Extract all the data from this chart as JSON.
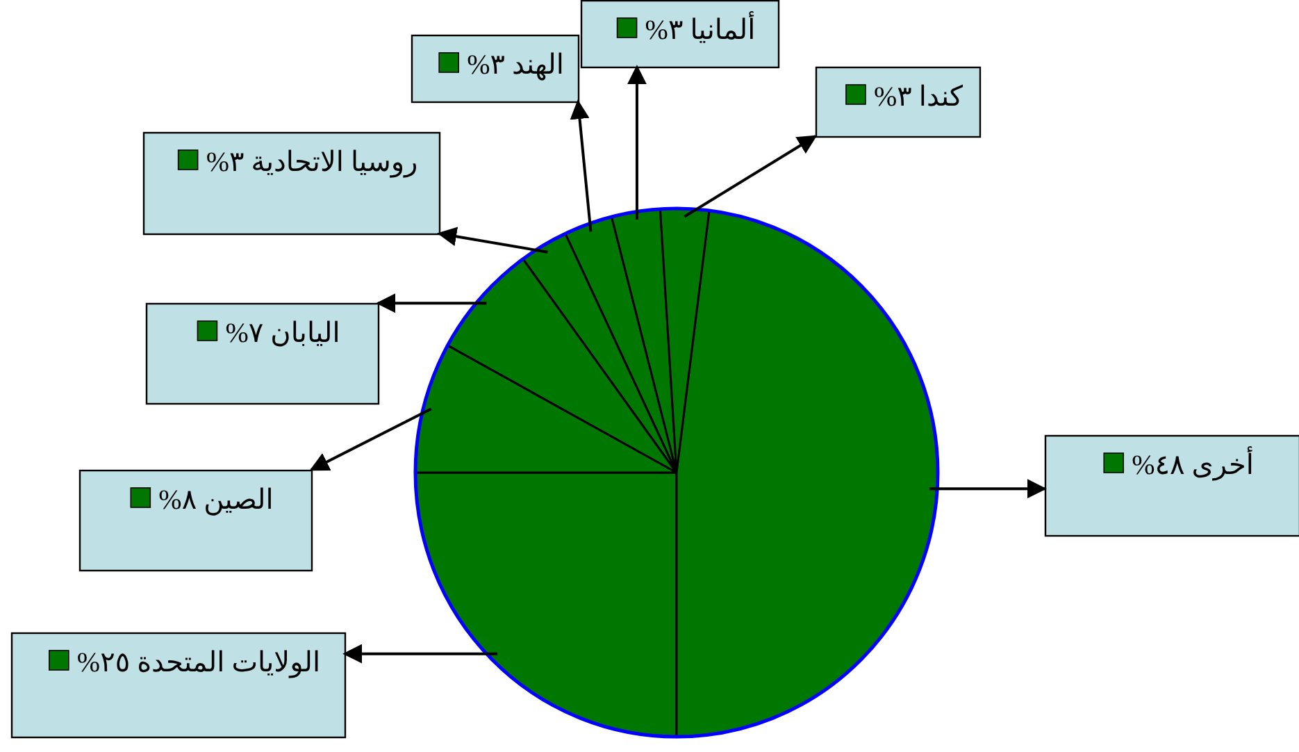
{
  "chart_data": {
    "type": "pie",
    "categories": [
      "الولايات المتحدة",
      "الصين",
      "اليابان",
      "روسيا الاتحادية",
      "الهند",
      "ألمانيا",
      "كندا",
      "أخرى"
    ],
    "values": [
      25,
      8,
      7,
      3,
      3,
      3,
      3,
      48
    ],
    "value_labels": [
      "٢٥%",
      "٨%",
      "٧%",
      "٣%",
      "٣%",
      "٣%",
      "٣%",
      "٤٨%"
    ],
    "legend": "left",
    "colors": [
      "#007700",
      "#007700",
      "#007700",
      "#007700",
      "#007700",
      "#007700",
      "#007700",
      "#007700"
    ]
  }
}
